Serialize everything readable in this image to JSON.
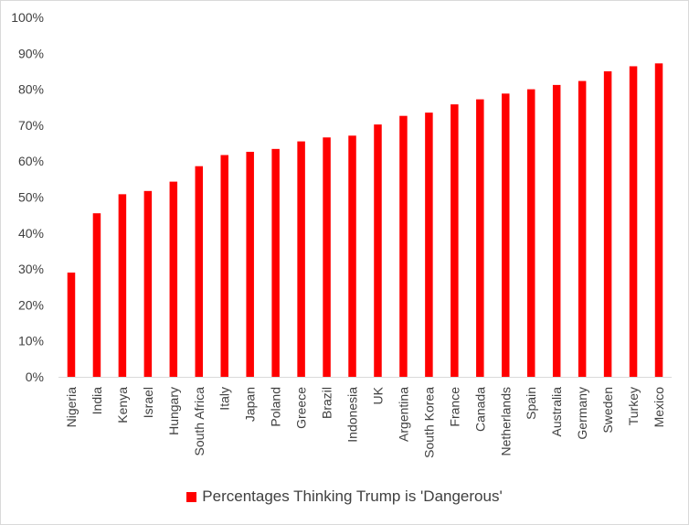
{
  "chart_data": {
    "type": "bar",
    "categories": [
      "Nigeria",
      "India",
      "Kenya",
      "Israel",
      "Hungary",
      "South Africa",
      "Italy",
      "Japan",
      "Poland",
      "Greece",
      "Brazil",
      "Indonesia",
      "UK",
      "Argentina",
      "South Korea",
      "France",
      "Canada",
      "Netherlands",
      "Spain",
      "Australia",
      "Germany",
      "Sweden",
      "Turkey",
      "Mexico"
    ],
    "series": [
      {
        "name": "Percentages Thinking Trump is 'Dangerous'",
        "values": [
          29,
          45.5,
          50.8,
          51.7,
          54.3,
          58.6,
          61.7,
          62.6,
          63.4,
          65.5,
          66.6,
          67.1,
          70.2,
          72.6,
          73.5,
          75.8,
          77.2,
          78.8,
          80,
          81.2,
          82.3,
          85,
          86.4,
          87.2
        ]
      }
    ],
    "yticks": [
      "0%",
      "10%",
      "20%",
      "30%",
      "40%",
      "50%",
      "60%",
      "70%",
      "80%",
      "90%",
      "100%"
    ],
    "ylim": [
      0,
      100
    ],
    "grid": false,
    "legend_position": "bottom",
    "bar_color": "#ff0000"
  },
  "legend": {
    "label": "Percentages Thinking Trump is 'Dangerous'"
  }
}
